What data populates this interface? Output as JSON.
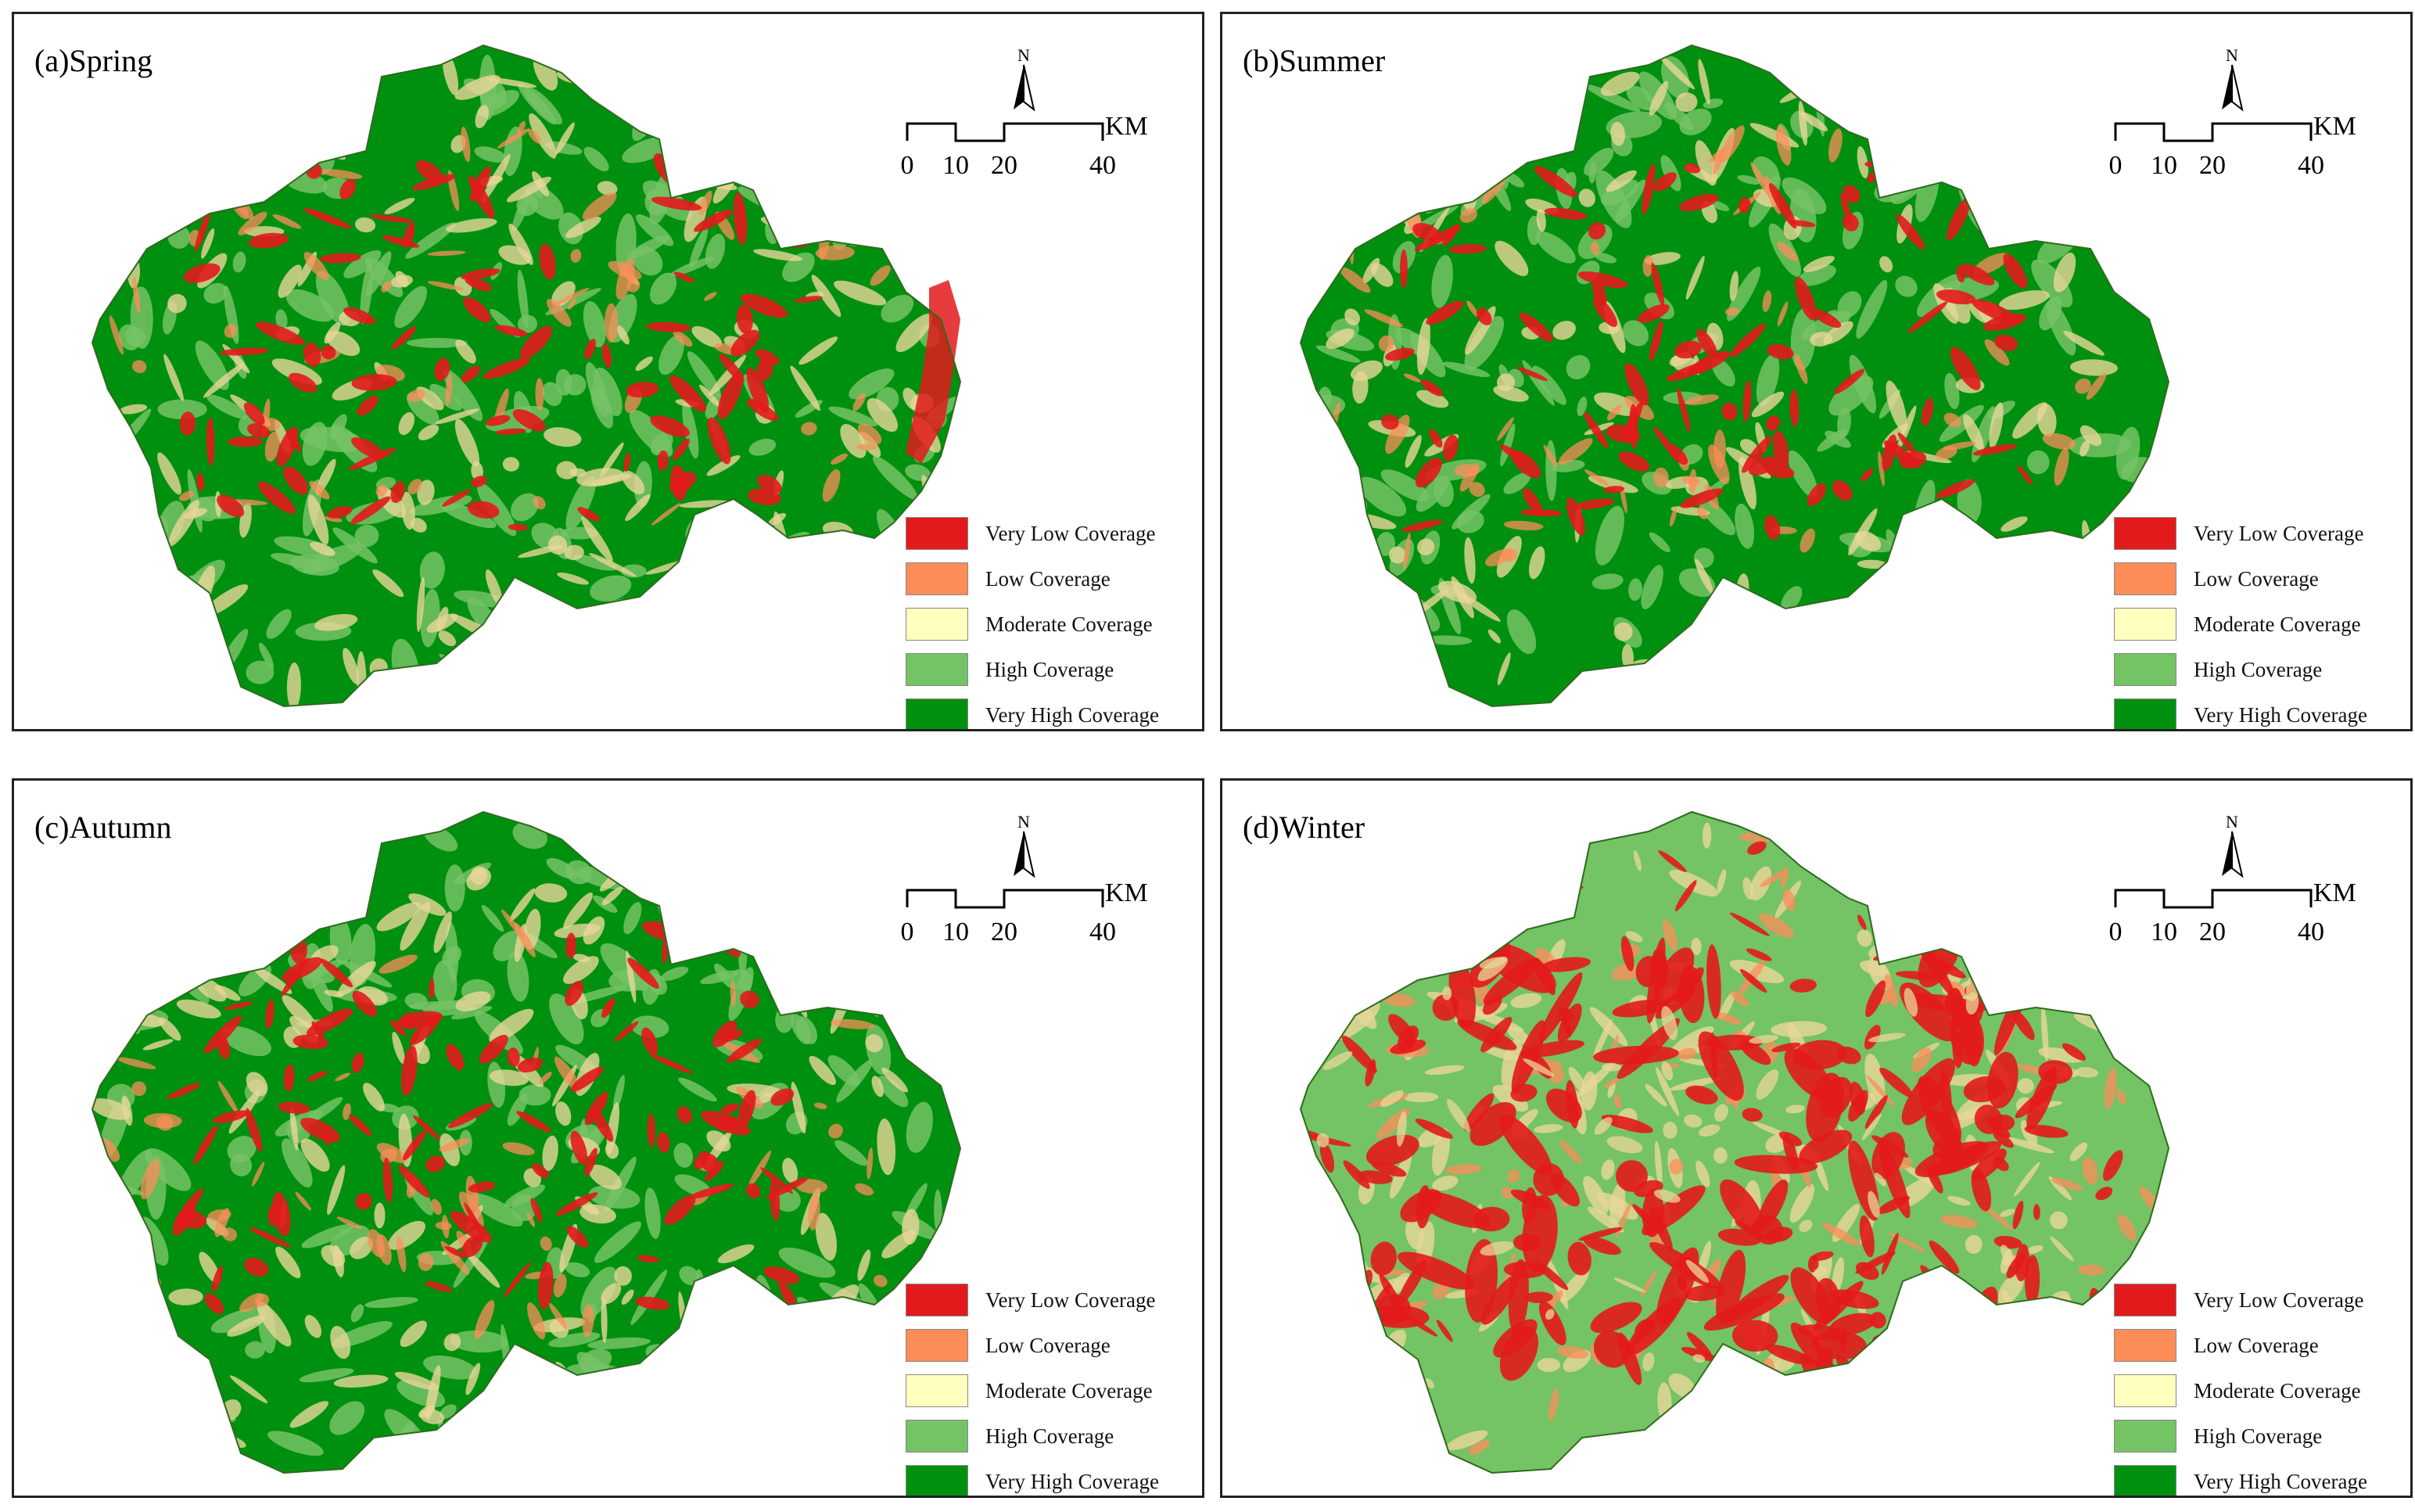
{
  "figure": {
    "panels": [
      {
        "id": "spring",
        "title": "(a)Spring",
        "red_density": 0.6
      },
      {
        "id": "summer",
        "title": "(b)Summer",
        "red_density": 0.65
      },
      {
        "id": "autumn",
        "title": "(c)Autumn",
        "red_density": 0.7
      },
      {
        "id": "winter",
        "title": "(d)Winter",
        "red_density": 1.0
      }
    ],
    "legend": [
      {
        "label": "Very Low Coverage",
        "color": "#e31a1c"
      },
      {
        "label": "Low Coverage",
        "color": "#fc8d59"
      },
      {
        "label": "Moderate Coverage",
        "color": "#ffffbf"
      },
      {
        "label": "High Coverage",
        "color": "#74c365"
      },
      {
        "label": "Very High Coverage",
        "color": "#00900f"
      }
    ],
    "scale": {
      "ticks": [
        "0",
        "10",
        "20",
        "40"
      ],
      "unit": "KM"
    },
    "north": "N"
  }
}
